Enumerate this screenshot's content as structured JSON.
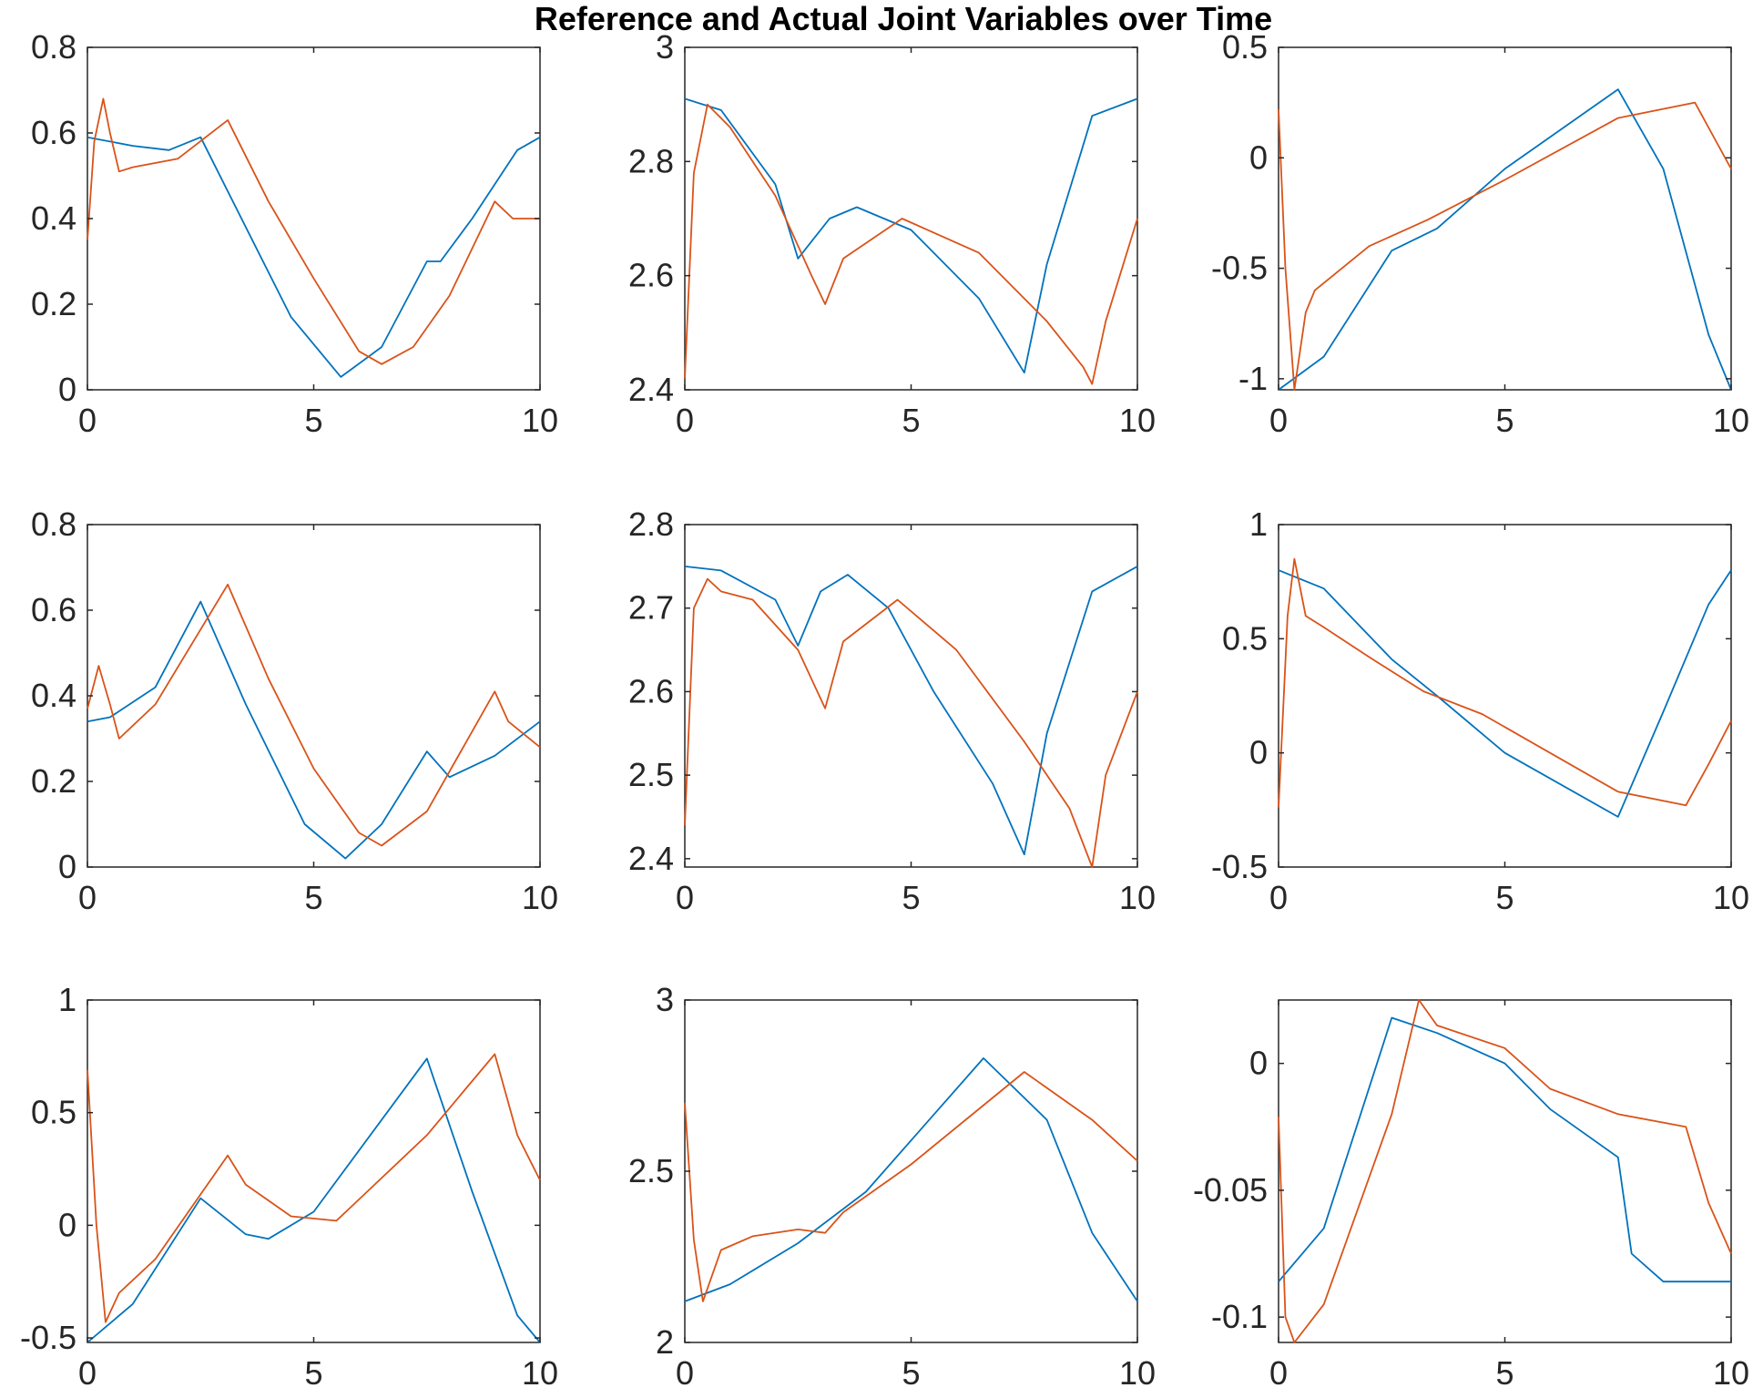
{
  "figure": {
    "title": "Reference and Actual Joint Variables over Time"
  },
  "chart_data": [
    {
      "type": "line",
      "xlim": [
        0,
        10
      ],
      "ylim": [
        0,
        0.8
      ],
      "xticks": [
        "0",
        "5",
        "10"
      ],
      "yticks": [
        "0",
        "0.2",
        "0.4",
        "0.6",
        "0.8"
      ],
      "series": [
        {
          "color": "#0072BD",
          "points": [
            [
              0,
              0.59
            ],
            [
              1,
              0.57
            ],
            [
              1.8,
              0.56
            ],
            [
              2.5,
              0.59
            ],
            [
              3.5,
              0.38
            ],
            [
              4.5,
              0.17
            ],
            [
              5.6,
              0.03
            ],
            [
              6.5,
              0.1
            ],
            [
              7.5,
              0.3
            ],
            [
              7.8,
              0.3
            ],
            [
              8.5,
              0.4
            ],
            [
              9.5,
              0.56
            ],
            [
              10,
              0.59
            ]
          ]
        },
        {
          "color": "#D95319",
          "points": [
            [
              0,
              0.35
            ],
            [
              0.15,
              0.58
            ],
            [
              0.35,
              0.68
            ],
            [
              0.5,
              0.6
            ],
            [
              0.7,
              0.51
            ],
            [
              1,
              0.52
            ],
            [
              2,
              0.54
            ],
            [
              3.1,
              0.63
            ],
            [
              4,
              0.44
            ],
            [
              5,
              0.26
            ],
            [
              6,
              0.09
            ],
            [
              6.5,
              0.06
            ],
            [
              7.2,
              0.1
            ],
            [
              8,
              0.22
            ],
            [
              9,
              0.44
            ],
            [
              9.4,
              0.4
            ],
            [
              10,
              0.4
            ]
          ]
        }
      ]
    },
    {
      "type": "line",
      "xlim": [
        0,
        10
      ],
      "ylim": [
        2.4,
        3
      ],
      "xticks": [
        "0",
        "5",
        "10"
      ],
      "yticks": [
        "2.4",
        "2.6",
        "2.8",
        "3"
      ],
      "series": [
        {
          "color": "#0072BD",
          "points": [
            [
              0,
              2.91
            ],
            [
              0.8,
              2.89
            ],
            [
              2,
              2.76
            ],
            [
              2.5,
              2.63
            ],
            [
              3.2,
              2.7
            ],
            [
              3.8,
              2.72
            ],
            [
              5,
              2.68
            ],
            [
              6.5,
              2.56
            ],
            [
              7.5,
              2.43
            ],
            [
              8,
              2.62
            ],
            [
              9,
              2.88
            ],
            [
              10,
              2.91
            ]
          ]
        },
        {
          "color": "#D95319",
          "points": [
            [
              0,
              2.42
            ],
            [
              0.2,
              2.78
            ],
            [
              0.5,
              2.9
            ],
            [
              1,
              2.86
            ],
            [
              2,
              2.74
            ],
            [
              2.8,
              2.6
            ],
            [
              3.1,
              2.55
            ],
            [
              3.5,
              2.63
            ],
            [
              4.8,
              2.7
            ],
            [
              6.5,
              2.64
            ],
            [
              8,
              2.52
            ],
            [
              8.8,
              2.44
            ],
            [
              9,
              2.41
            ],
            [
              9.3,
              2.52
            ],
            [
              10,
              2.7
            ]
          ]
        }
      ]
    },
    {
      "type": "line",
      "xlim": [
        0,
        10
      ],
      "ylim": [
        -1.05,
        0.5
      ],
      "xticks": [
        "0",
        "5",
        "10"
      ],
      "yticks": [
        "-1",
        "-0.5",
        "0",
        "0.5"
      ],
      "series": [
        {
          "color": "#0072BD",
          "points": [
            [
              0,
              -1.05
            ],
            [
              1,
              -0.9
            ],
            [
              2.5,
              -0.42
            ],
            [
              3.5,
              -0.32
            ],
            [
              5,
              -0.05
            ],
            [
              7.5,
              0.31
            ],
            [
              8.5,
              -0.05
            ],
            [
              9.5,
              -0.8
            ],
            [
              10,
              -1.05
            ]
          ]
        },
        {
          "color": "#D95319",
          "points": [
            [
              0,
              0.22
            ],
            [
              0.15,
              -0.5
            ],
            [
              0.35,
              -1.05
            ],
            [
              0.6,
              -0.7
            ],
            [
              0.8,
              -0.6
            ],
            [
              2,
              -0.4
            ],
            [
              3.3,
              -0.28
            ],
            [
              5,
              -0.1
            ],
            [
              7.5,
              0.18
            ],
            [
              9.2,
              0.25
            ],
            [
              9.6,
              0.1
            ],
            [
              10,
              -0.05
            ]
          ]
        }
      ]
    },
    {
      "type": "line",
      "xlim": [
        0,
        10
      ],
      "ylim": [
        0,
        0.8
      ],
      "xticks": [
        "0",
        "5",
        "10"
      ],
      "yticks": [
        "0",
        "0.2",
        "0.4",
        "0.6",
        "0.8"
      ],
      "series": [
        {
          "color": "#0072BD",
          "points": [
            [
              0,
              0.34
            ],
            [
              0.5,
              0.35
            ],
            [
              1.5,
              0.42
            ],
            [
              2.5,
              0.62
            ],
            [
              3.5,
              0.38
            ],
            [
              4.8,
              0.1
            ],
            [
              5.7,
              0.02
            ],
            [
              6.5,
              0.1
            ],
            [
              7.5,
              0.27
            ],
            [
              8,
              0.21
            ],
            [
              9,
              0.26
            ],
            [
              10,
              0.34
            ]
          ]
        },
        {
          "color": "#D95319",
          "points": [
            [
              0,
              0.37
            ],
            [
              0.25,
              0.47
            ],
            [
              0.5,
              0.38
            ],
            [
              0.7,
              0.3
            ],
            [
              1.5,
              0.38
            ],
            [
              3.1,
              0.66
            ],
            [
              4,
              0.44
            ],
            [
              5,
              0.23
            ],
            [
              6,
              0.08
            ],
            [
              6.5,
              0.05
            ],
            [
              7.5,
              0.13
            ],
            [
              9,
              0.41
            ],
            [
              9.3,
              0.34
            ],
            [
              10,
              0.28
            ]
          ]
        }
      ]
    },
    {
      "type": "line",
      "xlim": [
        0,
        10
      ],
      "ylim": [
        2.39,
        2.8
      ],
      "xticks": [
        "0",
        "5",
        "10"
      ],
      "yticks": [
        "2.4",
        "2.5",
        "2.6",
        "2.7",
        "2.8"
      ],
      "series": [
        {
          "color": "#0072BD",
          "points": [
            [
              0,
              2.75
            ],
            [
              0.8,
              2.745
            ],
            [
              2,
              2.71
            ],
            [
              2.5,
              2.655
            ],
            [
              3,
              2.72
            ],
            [
              3.6,
              2.74
            ],
            [
              4.5,
              2.7
            ],
            [
              5.5,
              2.6
            ],
            [
              6.8,
              2.49
            ],
            [
              7.5,
              2.405
            ],
            [
              8,
              2.55
            ],
            [
              9,
              2.72
            ],
            [
              10,
              2.75
            ]
          ]
        },
        {
          "color": "#D95319",
          "points": [
            [
              0,
              2.44
            ],
            [
              0.2,
              2.7
            ],
            [
              0.5,
              2.735
            ],
            [
              0.8,
              2.72
            ],
            [
              1.5,
              2.71
            ],
            [
              2.5,
              2.65
            ],
            [
              3.1,
              2.58
            ],
            [
              3.5,
              2.66
            ],
            [
              4.7,
              2.71
            ],
            [
              6,
              2.65
            ],
            [
              7.5,
              2.54
            ],
            [
              8.5,
              2.46
            ],
            [
              9,
              2.39
            ],
            [
              9.3,
              2.5
            ],
            [
              10,
              2.6
            ]
          ]
        }
      ]
    },
    {
      "type": "line",
      "xlim": [
        0,
        10
      ],
      "ylim": [
        -0.5,
        1
      ],
      "xticks": [
        "0",
        "5",
        "10"
      ],
      "yticks": [
        "-0.5",
        "0",
        "0.5",
        "1"
      ],
      "series": [
        {
          "color": "#0072BD",
          "points": [
            [
              0,
              0.8
            ],
            [
              1,
              0.72
            ],
            [
              2.5,
              0.41
            ],
            [
              3.5,
              0.25
            ],
            [
              5,
              0.0
            ],
            [
              7.5,
              -0.28
            ],
            [
              8.5,
              0.18
            ],
            [
              9.5,
              0.65
            ],
            [
              10,
              0.8
            ]
          ]
        },
        {
          "color": "#D95319",
          "points": [
            [
              0,
              -0.24
            ],
            [
              0.2,
              0.6
            ],
            [
              0.35,
              0.85
            ],
            [
              0.6,
              0.6
            ],
            [
              1,
              0.55
            ],
            [
              2,
              0.42
            ],
            [
              3.2,
              0.27
            ],
            [
              4.5,
              0.17
            ],
            [
              7.5,
              -0.17
            ],
            [
              9,
              -0.23
            ],
            [
              9.5,
              -0.05
            ],
            [
              10,
              0.14
            ]
          ]
        }
      ]
    },
    {
      "type": "line",
      "xlim": [
        0,
        10
      ],
      "ylim": [
        -0.52,
        1
      ],
      "xticks": [
        "0",
        "5",
        "10"
      ],
      "yticks": [
        "-0.5",
        "0",
        "0.5",
        "1"
      ],
      "series": [
        {
          "color": "#0072BD",
          "points": [
            [
              0,
              -0.52
            ],
            [
              1,
              -0.35
            ],
            [
              2.5,
              0.12
            ],
            [
              3.5,
              -0.04
            ],
            [
              4,
              -0.06
            ],
            [
              5,
              0.06
            ],
            [
              7.5,
              0.74
            ],
            [
              8.5,
              0.15
            ],
            [
              9.5,
              -0.4
            ],
            [
              10,
              -0.52
            ]
          ]
        },
        {
          "color": "#D95319",
          "points": [
            [
              0,
              0.69
            ],
            [
              0.2,
              0.0
            ],
            [
              0.4,
              -0.43
            ],
            [
              0.7,
              -0.3
            ],
            [
              1.5,
              -0.15
            ],
            [
              3.1,
              0.31
            ],
            [
              3.5,
              0.18
            ],
            [
              4.5,
              0.04
            ],
            [
              5.5,
              0.02
            ],
            [
              7.5,
              0.4
            ],
            [
              9,
              0.76
            ],
            [
              9.5,
              0.4
            ],
            [
              10,
              0.2
            ]
          ]
        }
      ]
    },
    {
      "type": "line",
      "xlim": [
        0,
        10
      ],
      "ylim": [
        2,
        3
      ],
      "xticks": [
        "0",
        "5",
        "10"
      ],
      "yticks": [
        "2",
        "2.5",
        "3"
      ],
      "series": [
        {
          "color": "#0072BD",
          "points": [
            [
              0,
              2.12
            ],
            [
              1,
              2.17
            ],
            [
              2.5,
              2.29
            ],
            [
              4,
              2.44
            ],
            [
              6.6,
              2.83
            ],
            [
              8,
              2.65
            ],
            [
              9,
              2.32
            ],
            [
              10,
              2.12
            ]
          ]
        },
        {
          "color": "#D95319",
          "points": [
            [
              0,
              2.7
            ],
            [
              0.2,
              2.3
            ],
            [
              0.4,
              2.12
            ],
            [
              0.8,
              2.27
            ],
            [
              1.5,
              2.31
            ],
            [
              2.5,
              2.33
            ],
            [
              3.1,
              2.32
            ],
            [
              3.5,
              2.38
            ],
            [
              5,
              2.52
            ],
            [
              7.5,
              2.79
            ],
            [
              9,
              2.65
            ],
            [
              10,
              2.53
            ]
          ]
        }
      ]
    },
    {
      "type": "line",
      "xlim": [
        0,
        10
      ],
      "ylim": [
        -0.11,
        0.025
      ],
      "xticks": [
        "0",
        "5",
        "10"
      ],
      "yticks": [
        "-0.1",
        "-0.05",
        "0"
      ],
      "series": [
        {
          "color": "#0072BD",
          "points": [
            [
              0,
              -0.086
            ],
            [
              1,
              -0.065
            ],
            [
              2.5,
              0.018
            ],
            [
              3.5,
              0.012
            ],
            [
              5,
              0.0
            ],
            [
              6,
              -0.018
            ],
            [
              7.5,
              -0.037
            ],
            [
              7.8,
              -0.075
            ],
            [
              8.5,
              -0.086
            ],
            [
              10,
              -0.086
            ]
          ]
        },
        {
          "color": "#D95319",
          "points": [
            [
              0,
              -0.021
            ],
            [
              0.15,
              -0.1
            ],
            [
              0.35,
              -0.11
            ],
            [
              1,
              -0.095
            ],
            [
              2.5,
              -0.02
            ],
            [
              3.1,
              0.025
            ],
            [
              3.5,
              0.015
            ],
            [
              5,
              0.006
            ],
            [
              6,
              -0.01
            ],
            [
              7.5,
              -0.02
            ],
            [
              9,
              -0.025
            ],
            [
              9.5,
              -0.055
            ],
            [
              10,
              -0.075
            ]
          ]
        }
      ]
    }
  ]
}
